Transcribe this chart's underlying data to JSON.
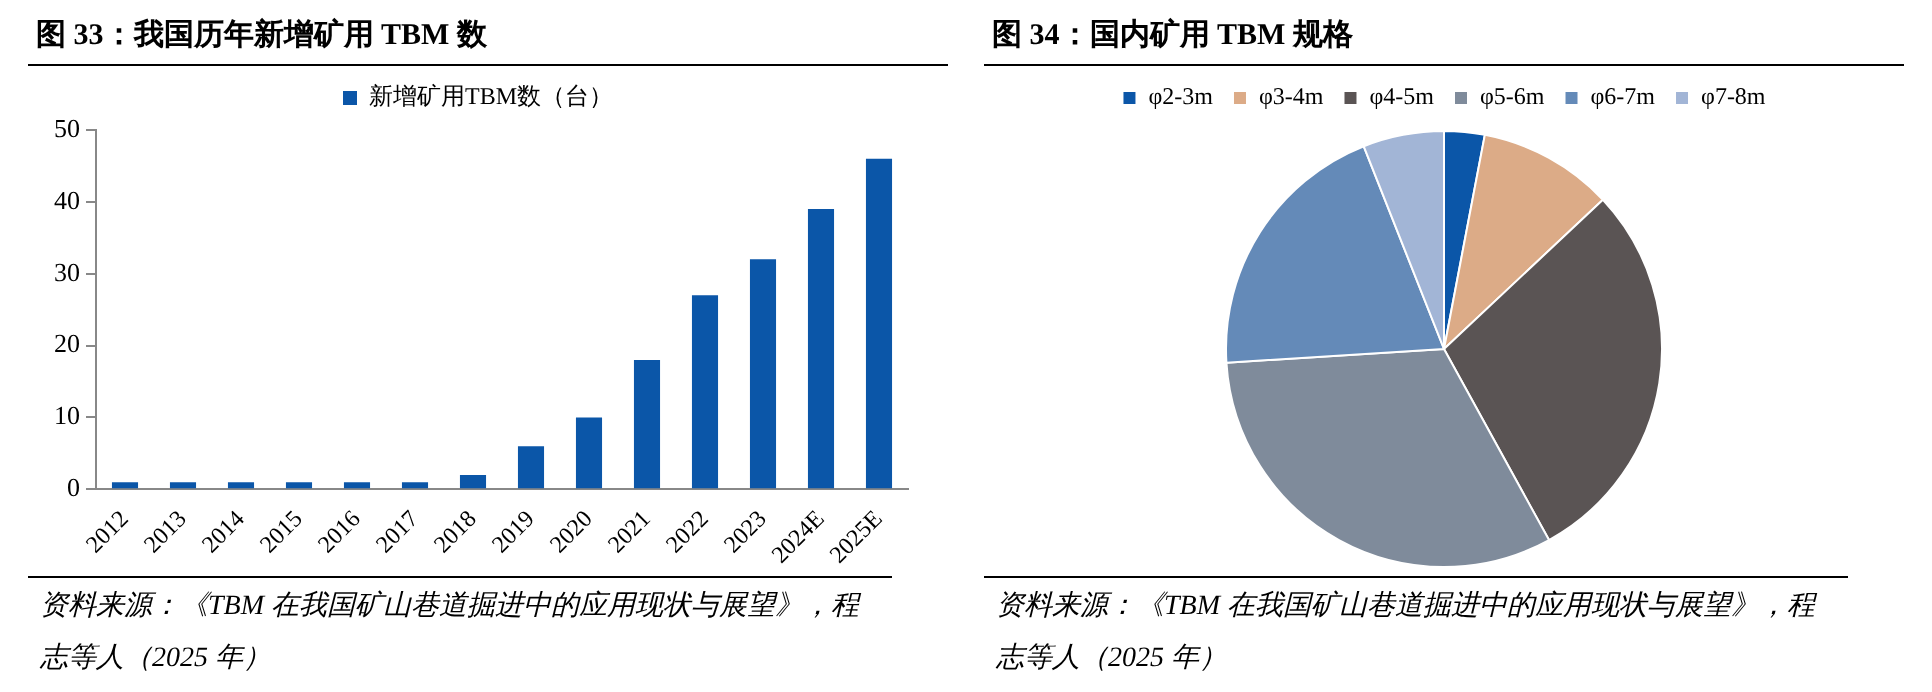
{
  "chart_data": [
    {
      "type": "bar",
      "title": "图 33：我国历年新增矿用 TBM 数",
      "categories": [
        "2012",
        "2013",
        "2014",
        "2015",
        "2016",
        "2017",
        "2018",
        "2019",
        "2020",
        "2021",
        "2022",
        "2023",
        "2024E",
        "2025E"
      ],
      "series": [
        {
          "name": "新增矿用TBM数（台）",
          "color": "#0b56a8",
          "values": [
            1,
            1,
            1,
            1,
            1,
            1,
            2,
            6,
            10,
            18,
            27,
            32,
            39,
            46
          ]
        }
      ],
      "ylim": [
        0,
        50
      ],
      "yticks": [
        0,
        10,
        20,
        30,
        40,
        50
      ],
      "grid": false,
      "legend": "top",
      "annotations": [
        "资料来源：《TBM 在我国矿山巷道掘进中的应用现状与展望》，程志等人（2025 年）"
      ]
    },
    {
      "type": "pie",
      "title": "图 34：国内矿用 TBM 规格",
      "categories": [
        "φ2-3m",
        "φ3-4m",
        "φ4-5m",
        "φ5-6m",
        "φ6-7m",
        "φ7-8m"
      ],
      "values": [
        3,
        10,
        29,
        32,
        20,
        6
      ],
      "colors": [
        "#0b56a8",
        "#dcab87",
        "#5a5454",
        "#7f8b9b",
        "#648ab8",
        "#a2b5d6"
      ],
      "legend": "top",
      "annotations": [
        "资料来源：《TBM 在我国矿山巷道掘进中的应用现状与展望》，程志等人（2025 年）"
      ]
    }
  ]
}
